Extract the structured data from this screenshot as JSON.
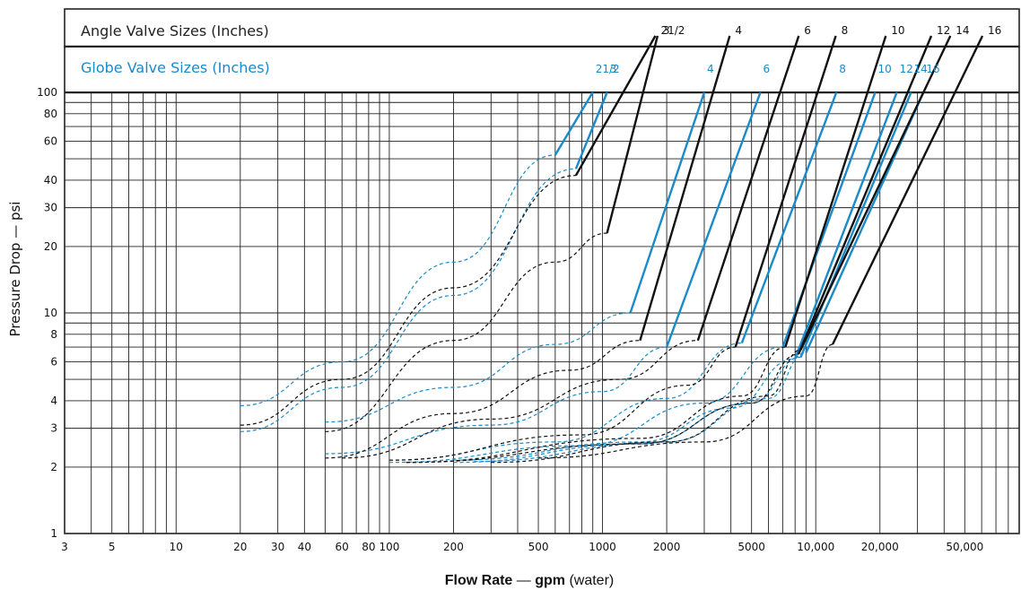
{
  "chart_data": {
    "type": "line",
    "title": "",
    "xlabel_bold": "Flow Rate",
    "xlabel_dash": " — ",
    "xlabel_unit": "gpm",
    "xlabel_note": " (water)",
    "ylabel": "Pressure Drop — psi",
    "xscale": "log",
    "yscale": "log",
    "xlim": [
      3,
      90000
    ],
    "ylim": [
      1,
      100
    ],
    "xticks": [
      {
        "v": 3,
        "label": "3"
      },
      {
        "v": 5,
        "label": "5"
      },
      {
        "v": 10,
        "label": "10"
      },
      {
        "v": 20,
        "label": "20"
      },
      {
        "v": 30,
        "label": "30"
      },
      {
        "v": 40,
        "label": "40"
      },
      {
        "v": 60,
        "label": "60"
      },
      {
        "v": 80,
        "label": "80"
      },
      {
        "v": 100,
        "label": "100"
      },
      {
        "v": 200,
        "label": "200"
      },
      {
        "v": 500,
        "label": "500"
      },
      {
        "v": 1000,
        "label": "1000"
      },
      {
        "v": 2000,
        "label": "2000"
      },
      {
        "v": 5000,
        "label": "5000"
      },
      {
        "v": 10000,
        "label": "10,000"
      },
      {
        "v": 20000,
        "label": "20,000"
      },
      {
        "v": 50000,
        "label": "50,000"
      }
    ],
    "yticks": [
      {
        "v": 1,
        "label": "1"
      },
      {
        "v": 2,
        "label": "2"
      },
      {
        "v": 3,
        "label": "3"
      },
      {
        "v": 4,
        "label": "4"
      },
      {
        "v": 6,
        "label": "6"
      },
      {
        "v": 8,
        "label": "8"
      },
      {
        "v": 10,
        "label": "10"
      },
      {
        "v": 20,
        "label": "20"
      },
      {
        "v": 30,
        "label": "30"
      },
      {
        "v": 40,
        "label": "40"
      },
      {
        "v": 60,
        "label": "60"
      },
      {
        "v": 80,
        "label": "80"
      },
      {
        "v": 100,
        "label": "100"
      }
    ],
    "grid": true,
    "header_angle": "Angle Valve Sizes (Inches)",
    "header_globe": "Globe Valve Sizes (Inches)",
    "colors": {
      "angle": "#111111",
      "globe": "#1a8ac8",
      "grid": "#222222"
    },
    "series": [
      {
        "name": "2 1/2",
        "group": "globe",
        "curve_x": [
          20,
          60,
          200,
          600
        ],
        "curve_y": [
          3.8,
          6,
          17,
          52
        ],
        "upper": [
          [
            600,
            52
          ],
          [
            900,
            100
          ]
        ],
        "label": "21/2"
      },
      {
        "name": "3",
        "group": "globe",
        "curve_x": [
          20,
          60,
          200,
          750
        ],
        "curve_y": [
          2.9,
          4.6,
          12,
          45
        ],
        "upper": [
          [
            750,
            45
          ],
          [
            1050,
            100
          ]
        ],
        "label": "3"
      },
      {
        "name": "4",
        "group": "globe",
        "curve_x": [
          50,
          200,
          600,
          1350
        ],
        "curve_y": [
          3.2,
          4.6,
          7.2,
          10
        ],
        "upper": [
          [
            1350,
            10
          ],
          [
            3000,
            100
          ]
        ],
        "label": "4"
      },
      {
        "name": "6",
        "group": "globe",
        "curve_x": [
          50,
          300,
          1000,
          2000
        ],
        "curve_y": [
          2.3,
          3.1,
          4.4,
          7
        ],
        "upper": [
          [
            2000,
            7
          ],
          [
            5500,
            100
          ]
        ],
        "label": "6"
      },
      {
        "name": "8",
        "group": "globe",
        "curve_x": [
          100,
          600,
          2000,
          4500
        ],
        "curve_y": [
          2.15,
          2.6,
          4.1,
          7.3
        ],
        "upper": [
          [
            4500,
            7.3
          ],
          [
            12500,
            100
          ]
        ],
        "label": "8"
      },
      {
        "name": "10",
        "group": "globe",
        "curve_x": [
          100,
          800,
          3000,
          7000
        ],
        "curve_y": [
          2.1,
          2.5,
          3.9,
          7
        ],
        "upper": [
          [
            7000,
            7
          ],
          [
            19000,
            100
          ]
        ],
        "label": "10"
      },
      {
        "name": "12",
        "group": "globe",
        "curve_x": [
          200,
          1500,
          4000,
          8000
        ],
        "curve_y": [
          2.15,
          2.6,
          3.7,
          6.2
        ],
        "upper": [
          [
            8000,
            6.2
          ],
          [
            24000,
            100
          ]
        ],
        "label": "12"
      },
      {
        "name": "14",
        "group": "globe",
        "curve_x": [
          200,
          1500,
          5000,
          8500
        ],
        "curve_y": [
          2.1,
          2.55,
          3.9,
          6.3
        ],
        "upper": [
          [
            8500,
            6.3
          ],
          [
            28000,
            100
          ]
        ],
        "label": "14"
      },
      {
        "name": "16",
        "group": "globe",
        "curve_x": [
          250,
          2000,
          6000,
          9000
        ],
        "curve_y": [
          2.12,
          2.6,
          4.1,
          6.6
        ],
        "upper": [
          [
            9000,
            6.6
          ],
          [
            32000,
            100
          ]
        ],
        "label": "16"
      },
      {
        "name": "2 1/2",
        "group": "angle",
        "curve_x": [
          20,
          60,
          200,
          750
        ],
        "curve_y": [
          3.1,
          5,
          13,
          42
        ],
        "upper": [
          [
            750,
            42
          ],
          [
            1250,
            100
          ]
        ],
        "label": "21/2"
      },
      {
        "name": "3",
        "group": "angle",
        "curve_x": [
          50,
          200,
          600,
          1050
        ],
        "curve_y": [
          2.9,
          7.5,
          17,
          23
        ],
        "upper": [
          [
            1050,
            23
          ],
          [
            1550,
            100
          ]
        ],
        "label": "3"
      },
      {
        "name": "4",
        "group": "angle",
        "curve_x": [
          50,
          200,
          700,
          1500
        ],
        "curve_y": [
          2.2,
          3.5,
          5.5,
          7.5
        ],
        "upper": [
          [
            1500,
            7.5
          ],
          [
            3300,
            100
          ]
        ],
        "label": "4"
      },
      {
        "name": "6",
        "group": "angle",
        "curve_x": [
          60,
          300,
          1200,
          2800
        ],
        "curve_y": [
          2.2,
          3.3,
          5,
          7.5
        ],
        "upper": [
          [
            2800,
            7.5
          ],
          [
            6800,
            100
          ]
        ],
        "label": "6"
      },
      {
        "name": "8",
        "group": "angle",
        "curve_x": [
          100,
          800,
          2500,
          4200
        ],
        "curve_y": [
          2.15,
          2.8,
          4.7,
          7
        ],
        "upper": [
          [
            4200,
            7
          ],
          [
            10200,
            100
          ]
        ],
        "label": "8"
      },
      {
        "name": "10",
        "group": "angle",
        "curve_x": [
          120,
          1500,
          4500,
          7200
        ],
        "curve_y": [
          2.1,
          2.7,
          4.2,
          7
        ],
        "upper": [
          [
            7200,
            7
          ],
          [
            17500,
            100
          ]
        ],
        "label": "10"
      },
      {
        "name": "12",
        "group": "angle",
        "curve_x": [
          120,
          1500,
          5000,
          8300
        ],
        "curve_y": [
          2.1,
          2.55,
          3.9,
          6.5
        ],
        "upper": [
          [
            8300,
            6.5
          ],
          [
            27000,
            100
          ]
        ],
        "label": "12"
      },
      {
        "name": "14",
        "group": "angle",
        "curve_x": [
          300,
          2000,
          6000,
          8500
        ],
        "curve_y": [
          2.1,
          2.6,
          4.2,
          6.8
        ],
        "upper": [
          [
            8500,
            6.8
          ],
          [
            32000,
            100
          ]
        ],
        "label": "14"
      },
      {
        "name": "16",
        "group": "angle",
        "curve_x": [
          500,
          3000,
          9000,
          12000
        ],
        "curve_y": [
          2.2,
          2.6,
          4.2,
          7.2
        ],
        "upper": [
          [
            12000,
            7.2
          ],
          [
            45000,
            100
          ]
        ],
        "label": "16"
      }
    ]
  }
}
